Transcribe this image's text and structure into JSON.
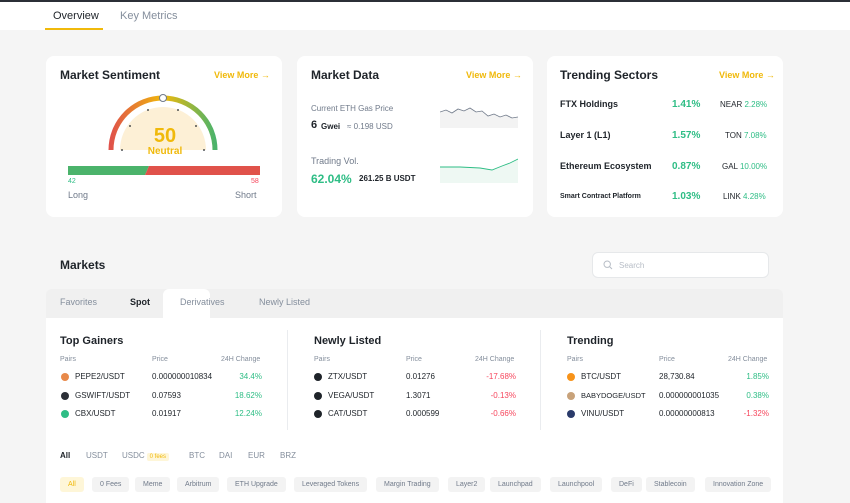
{
  "top_tabs": [
    "Overview",
    "Key Metrics"
  ],
  "sentiment": {
    "title": "Market Sentiment",
    "view_more": "View More",
    "value": "50",
    "label": "Neutral",
    "long_value": "42",
    "short_value": "58",
    "long_label": "Long",
    "short_label": "Short",
    "long_fraction": 0.42
  },
  "market_data": {
    "title": "Market Data",
    "view_more": "View More",
    "gas_label": "Current ETH Gas Price",
    "gas_value": "6",
    "gas_unit": "Gwei",
    "gas_usd": "≈ 0.198 USD",
    "vol_label": "Trading Vol.",
    "vol_pct": "62.04%",
    "vol_value": "261.25 B USDT"
  },
  "trending_sectors": {
    "title": "Trending Sectors",
    "view_more": "View More",
    "rows": [
      {
        "name": "FTX Holdings",
        "pct": "1.41%",
        "coin": "NEAR",
        "coin_pct": "2.28%"
      },
      {
        "name": "Layer 1 (L1)",
        "pct": "1.57%",
        "coin": "TON",
        "coin_pct": "7.08%"
      },
      {
        "name": "Ethereum Ecosystem",
        "pct": "0.87%",
        "coin": "GAL",
        "coin_pct": "10.00%"
      },
      {
        "name": "Smart Contract Platform",
        "pct": "1.03%",
        "coin": "LINK",
        "coin_pct": "4.28%"
      }
    ]
  },
  "markets": {
    "title": "Markets",
    "search_placeholder": "Search",
    "tabs": [
      "Favorites",
      "Spot",
      "Derivatives",
      "Newly Listed"
    ],
    "headers": {
      "pairs": "Pairs",
      "price": "Price",
      "change": "24H Change"
    },
    "columns": [
      {
        "title": "Top Gainers",
        "rows": [
          {
            "pair": "PEPE2/USDT",
            "price": "0.000000010834",
            "change": "34.4%",
            "dir": "up",
            "color": "#e8894a"
          },
          {
            "pair": "GSWIFT/USDT",
            "price": "0.07593",
            "change": "18.62%",
            "dir": "up",
            "color": "#2b2f36"
          },
          {
            "pair": "CBX/USDT",
            "price": "0.01917",
            "change": "12.24%",
            "dir": "up",
            "color": "#2ebd85"
          }
        ]
      },
      {
        "title": "Newly Listed",
        "rows": [
          {
            "pair": "ZTX/USDT",
            "price": "0.01276",
            "change": "-17.68%",
            "dir": "down",
            "color": "#1e2329"
          },
          {
            "pair": "VEGA/USDT",
            "price": "1.3071",
            "change": "-0.13%",
            "dir": "down",
            "color": "#1e2329"
          },
          {
            "pair": "CAT/USDT",
            "price": "0.000599",
            "change": "-0.66%",
            "dir": "down",
            "color": "#1e2329"
          }
        ]
      },
      {
        "title": "Trending",
        "rows": [
          {
            "pair": "BTC/USDT",
            "price": "28,730.84",
            "change": "1.85%",
            "dir": "up",
            "color": "#f7931a"
          },
          {
            "pair": "BABYDOGE/USDT",
            "price": "0.000000001035",
            "change": "0.38%",
            "dir": "up",
            "color": "#c8a27a"
          },
          {
            "pair": "VINU/USDT",
            "price": "0.00000000813",
            "change": "-1.32%",
            "dir": "down",
            "color": "#2a3a6a"
          }
        ]
      }
    ],
    "quote_tabs": [
      "All",
      "USDT",
      "USDC",
      "BTC",
      "DAI",
      "EUR",
      "BRZ"
    ],
    "usdc_badge": "0 fees",
    "categories": [
      "All",
      "0 Fees",
      "Meme",
      "Arbitrum",
      "ETH Upgrade",
      "Leveraged Tokens",
      "Margin Trading",
      "Layer2",
      "Launchpad",
      "Launchpool",
      "DeFi",
      "Stablecoin",
      "Innovation Zone"
    ]
  },
  "colors": {
    "accent": "#f0b90b",
    "up": "#2ebd85",
    "down": "#f6465d"
  }
}
